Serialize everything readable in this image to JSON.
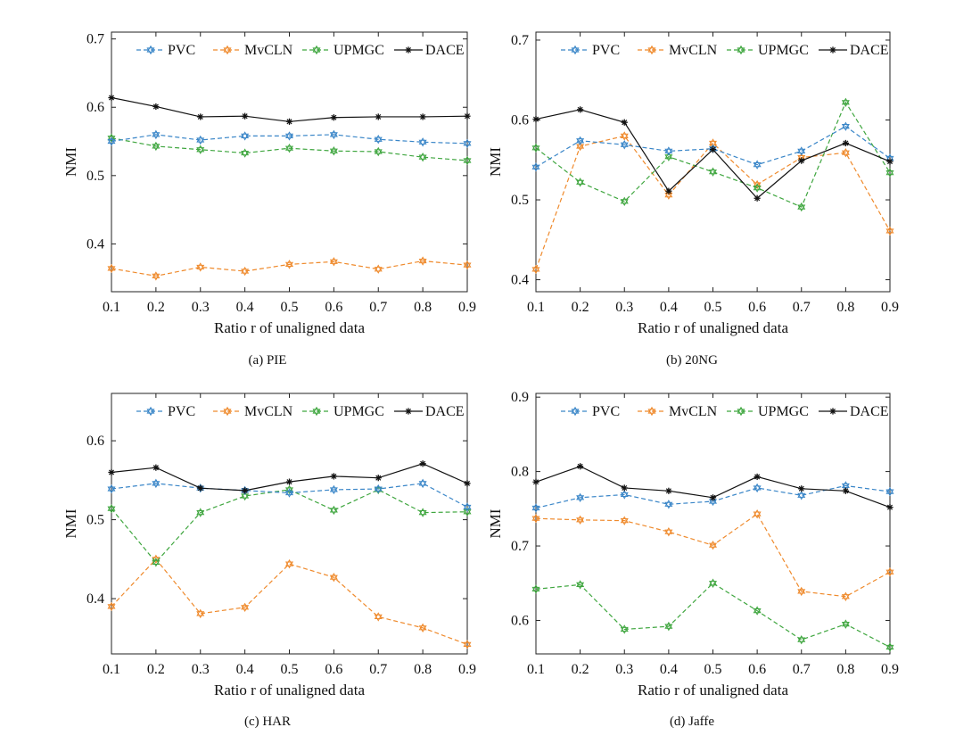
{
  "figure": {
    "series_colors": {
      "PVC": "#3a86c8",
      "MvCLN": "#ef8a2c",
      "UPMGC": "#3fa63f",
      "DACE": "#111111"
    }
  },
  "chart_data": [
    {
      "type": "line",
      "caption": "(a)  PIE",
      "xlabel": "Ratio r of unaligned data",
      "ylabel": "NMI",
      "x": [
        0.1,
        0.2,
        0.3,
        0.4,
        0.5,
        0.6,
        0.7,
        0.8,
        0.9
      ],
      "xticks": [
        "0.1",
        "0.2",
        "0.3",
        "0.4",
        "0.5",
        "0.6",
        "0.7",
        "0.8",
        "0.9"
      ],
      "xlim": [
        0.1,
        0.9
      ],
      "ylim": [
        0.33,
        0.71
      ],
      "yticks": [
        0.4,
        0.5,
        0.6,
        0.7
      ],
      "ytick_labels": [
        "0.4",
        "0.5",
        "0.6",
        "0.7"
      ],
      "legend": "top",
      "series": [
        {
          "name": "PVC",
          "values": [
            0.55,
            0.56,
            0.552,
            0.558,
            0.558,
            0.56,
            0.553,
            0.549,
            0.547
          ]
        },
        {
          "name": "MvCLN",
          "values": [
            0.364,
            0.353,
            0.366,
            0.36,
            0.37,
            0.374,
            0.363,
            0.375,
            0.369
          ]
        },
        {
          "name": "UPMGC",
          "values": [
            0.555,
            0.543,
            0.538,
            0.533,
            0.54,
            0.536,
            0.535,
            0.527,
            0.522
          ]
        },
        {
          "name": "DACE",
          "values": [
            0.614,
            0.601,
            0.586,
            0.587,
            0.579,
            0.585,
            0.586,
            0.586,
            0.587
          ]
        }
      ]
    },
    {
      "type": "line",
      "caption": "(b)  20NG",
      "xlabel": "Ratio r of unaligned data",
      "ylabel": "NMI",
      "x": [
        0.1,
        0.2,
        0.3,
        0.4,
        0.5,
        0.6,
        0.7,
        0.8,
        0.9
      ],
      "xticks": [
        "0.1",
        "0.2",
        "0.3",
        "0.4",
        "0.5",
        "0.6",
        "0.7",
        "0.8",
        "0.9"
      ],
      "xlim": [
        0.1,
        0.9
      ],
      "ylim": [
        0.385,
        0.71
      ],
      "yticks": [
        0.4,
        0.5,
        0.6,
        0.7
      ],
      "ytick_labels": [
        "0.4",
        "0.5",
        "0.6",
        "0.7"
      ],
      "legend": "top",
      "series": [
        {
          "name": "PVC",
          "values": [
            0.541,
            0.574,
            0.569,
            0.561,
            0.564,
            0.544,
            0.561,
            0.592,
            0.552
          ]
        },
        {
          "name": "MvCLN",
          "values": [
            0.413,
            0.567,
            0.58,
            0.506,
            0.571,
            0.519,
            0.553,
            0.559,
            0.461
          ]
        },
        {
          "name": "UPMGC",
          "values": [
            0.565,
            0.522,
            0.498,
            0.554,
            0.535,
            0.515,
            0.491,
            0.622,
            0.534
          ]
        },
        {
          "name": "DACE",
          "values": [
            0.601,
            0.613,
            0.597,
            0.511,
            0.563,
            0.502,
            0.549,
            0.571,
            0.548
          ]
        }
      ]
    },
    {
      "type": "line",
      "caption": "(c)  HAR",
      "xlabel": "Ratio r of unaligned data",
      "ylabel": "NMI",
      "x": [
        0.1,
        0.2,
        0.3,
        0.4,
        0.5,
        0.6,
        0.7,
        0.8,
        0.9
      ],
      "xticks": [
        "0.1",
        "0.2",
        "0.3",
        "0.4",
        "0.5",
        "0.6",
        "0.7",
        "0.8",
        "0.9"
      ],
      "xlim": [
        0.1,
        0.9
      ],
      "ylim": [
        0.33,
        0.66
      ],
      "yticks": [
        0.4,
        0.5,
        0.6
      ],
      "ytick_labels": [
        "0.4",
        "0.5",
        "0.6"
      ],
      "legend": "top",
      "series": [
        {
          "name": "PVC",
          "values": [
            0.539,
            0.546,
            0.54,
            0.537,
            0.534,
            0.538,
            0.539,
            0.546,
            0.516
          ]
        },
        {
          "name": "MvCLN",
          "values": [
            0.39,
            0.45,
            0.381,
            0.389,
            0.444,
            0.427,
            0.377,
            0.363,
            0.342
          ]
        },
        {
          "name": "UPMGC",
          "values": [
            0.514,
            0.446,
            0.509,
            0.53,
            0.538,
            0.512,
            0.538,
            0.509,
            0.51
          ]
        },
        {
          "name": "DACE",
          "values": [
            0.56,
            0.566,
            0.54,
            0.537,
            0.548,
            0.555,
            0.553,
            0.571,
            0.546
          ]
        }
      ]
    },
    {
      "type": "line",
      "caption": "(d)  Jaffe",
      "xlabel": "Ratio r of unaligned data",
      "ylabel": "NMI",
      "x": [
        0.1,
        0.2,
        0.3,
        0.4,
        0.5,
        0.6,
        0.7,
        0.8,
        0.9
      ],
      "xticks": [
        "0.1",
        "0.2",
        "0.3",
        "0.4",
        "0.5",
        "0.6",
        "0.7",
        "0.8",
        "0.9"
      ],
      "xlim": [
        0.1,
        0.9
      ],
      "ylim": [
        0.555,
        0.905
      ],
      "yticks": [
        0.6,
        0.7,
        0.8,
        0.9
      ],
      "ytick_labels": [
        "0.6",
        "0.7",
        "0.8",
        "0.9"
      ],
      "legend": "top",
      "series": [
        {
          "name": "PVC",
          "values": [
            0.751,
            0.765,
            0.769,
            0.756,
            0.76,
            0.778,
            0.768,
            0.781,
            0.773
          ]
        },
        {
          "name": "MvCLN",
          "values": [
            0.737,
            0.735,
            0.734,
            0.719,
            0.701,
            0.743,
            0.639,
            0.632,
            0.665
          ]
        },
        {
          "name": "UPMGC",
          "values": [
            0.642,
            0.648,
            0.588,
            0.592,
            0.65,
            0.613,
            0.574,
            0.595,
            0.564
          ]
        },
        {
          "name": "DACE",
          "values": [
            0.786,
            0.807,
            0.778,
            0.774,
            0.765,
            0.793,
            0.777,
            0.774,
            0.752
          ]
        }
      ]
    }
  ]
}
